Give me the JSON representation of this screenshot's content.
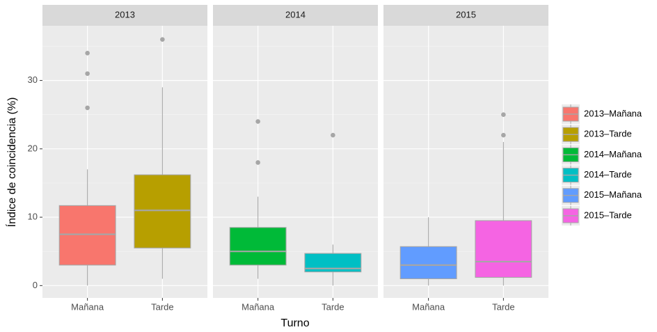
{
  "chart_data": {
    "type": "box",
    "x_label": "Turno",
    "y_label": "Índice de coincidencia (%)",
    "ylim": [
      -1.8,
      38
    ],
    "yticks": [
      0,
      10,
      20,
      30
    ],
    "grid": true,
    "legend": "right",
    "facets": [
      {
        "title": "2013",
        "categories": [
          "Mañana",
          "Tarde"
        ],
        "boxes": [
          {
            "name": "2013–Mañana",
            "color": "#F8766D",
            "min": 0,
            "q1": 3,
            "median": 7.5,
            "q3": 11.7,
            "max": 17,
            "outliers": [
              34,
              31,
              26
            ]
          },
          {
            "name": "2013–Tarde",
            "color": "#B79F00",
            "min": 1,
            "q1": 5.5,
            "median": 11,
            "q3": 16.2,
            "max": 29,
            "outliers": [
              36
            ]
          }
        ]
      },
      {
        "title": "2014",
        "categories": [
          "Mañana",
          "Tarde"
        ],
        "boxes": [
          {
            "name": "2014–Mañana",
            "color": "#00BA38",
            "min": 1,
            "q1": 3,
            "median": 5,
            "q3": 8.5,
            "max": 13,
            "outliers": [
              24,
              18
            ]
          },
          {
            "name": "2014–Tarde",
            "color": "#00BFC4",
            "min": 0,
            "q1": 2,
            "median": 2.5,
            "q3": 4.7,
            "max": 6,
            "outliers": [
              22
            ]
          }
        ]
      },
      {
        "title": "2015",
        "categories": [
          "Mañana",
          "Tarde"
        ],
        "boxes": [
          {
            "name": "2015–Mañana",
            "color": "#619CFF",
            "min": 0,
            "q1": 1,
            "median": 3,
            "q3": 5.7,
            "max": 10,
            "outliers": []
          },
          {
            "name": "2015–Tarde",
            "color": "#F564E3",
            "min": 0,
            "q1": 1.2,
            "median": 3.5,
            "q3": 9.5,
            "max": 21,
            "outliers": [
              25,
              22
            ]
          }
        ]
      }
    ]
  }
}
